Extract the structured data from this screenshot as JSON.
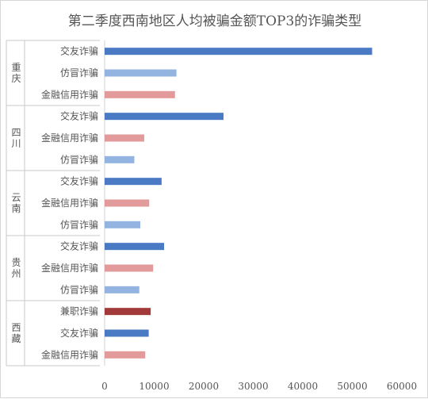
{
  "chart_data": {
    "type": "bar",
    "orientation": "horizontal",
    "title": "第二季度西南地区人均被骗金额TOP3的诈骗类型",
    "xlim": [
      0,
      60000
    ],
    "x_ticks": [
      "0",
      "10000",
      "20000",
      "30000",
      "40000",
      "50000",
      "60000"
    ],
    "grid": false,
    "colors": {
      "交友诈骗": "#4a7ac4",
      "仿冒诈骗": "#93b4e0",
      "金融信用诈骗": "#e39a9a",
      "兼职诈骗": "#a33a3a"
    },
    "groups": [
      {
        "name": "重庆",
        "bars": [
          {
            "label": "交友诈骗",
            "value": 54000
          },
          {
            "label": "仿冒诈骗",
            "value": 14500
          },
          {
            "label": "金融信用诈骗",
            "value": 14200
          }
        ]
      },
      {
        "name": "四川",
        "bars": [
          {
            "label": "交友诈骗",
            "value": 24000
          },
          {
            "label": "金融信用诈骗",
            "value": 8000
          },
          {
            "label": "仿冒诈骗",
            "value": 6000
          }
        ]
      },
      {
        "name": "云南",
        "bars": [
          {
            "label": "交友诈骗",
            "value": 11500
          },
          {
            "label": "金融信用诈骗",
            "value": 9000
          },
          {
            "label": "仿冒诈骗",
            "value": 7200
          }
        ]
      },
      {
        "name": "贵州",
        "bars": [
          {
            "label": "交友诈骗",
            "value": 12000
          },
          {
            "label": "金融信用诈骗",
            "value": 9800
          },
          {
            "label": "仿冒诈骗",
            "value": 7000
          }
        ]
      },
      {
        "name": "西藏",
        "bars": [
          {
            "label": "兼职诈骗",
            "value": 9300
          },
          {
            "label": "交友诈骗",
            "value": 8900
          },
          {
            "label": "金融信用诈骗",
            "value": 8200
          }
        ]
      }
    ]
  }
}
